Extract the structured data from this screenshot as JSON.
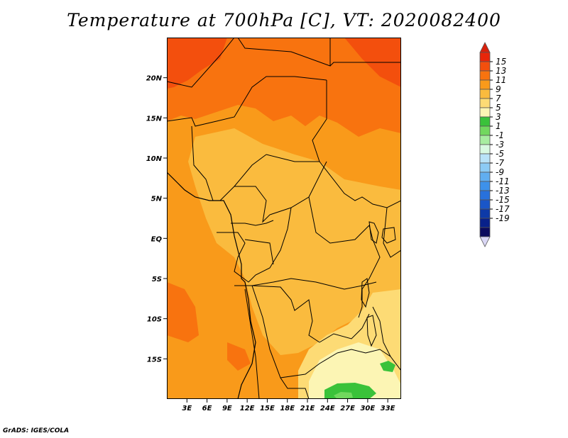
{
  "title": "Temperature at 700hPa [C], VT: 2020082400",
  "credit": "GrADS: IGES/COLA",
  "map": {
    "lon_labels": [
      "3E",
      "6E",
      "9E",
      "12E",
      "15E",
      "18E",
      "21E",
      "24E",
      "27E",
      "30E",
      "33E"
    ],
    "lon_values": [
      3,
      6,
      9,
      12,
      15,
      18,
      21,
      24,
      27,
      30,
      33
    ],
    "lat_labels": [
      "20N",
      "15N",
      "10N",
      "5N",
      "EQ",
      "5S",
      "10S",
      "15S"
    ],
    "lat_values": [
      20,
      15,
      10,
      5,
      0,
      -5,
      -10,
      -15
    ],
    "lon_range": [
      0,
      35
    ],
    "lat_range": [
      -20,
      25
    ]
  },
  "colorbar": {
    "labels": [
      "15",
      "13",
      "11",
      "9",
      "7",
      "5",
      "3",
      "1",
      "-1",
      "-3",
      "-5",
      "-7",
      "-9",
      "-11",
      "-13",
      "-15",
      "-17",
      "-19"
    ],
    "colors": [
      "#e8260a",
      "#f34f0d",
      "#f8730f",
      "#f99a1a",
      "#fabb3e",
      "#fddb75",
      "#fcf5b4",
      "#3ac23a",
      "#71d85e",
      "#a7eda0",
      "#d8f9e1",
      "#b9e3f8",
      "#8ccbf5",
      "#61aef0",
      "#3d91ea",
      "#2871dc",
      "#1a56c8",
      "#0d3aa8",
      "#08218a",
      "#0b0b5e"
    ],
    "triangle_top": "#d9210c",
    "triangle_bottom": "#dad7f5"
  }
}
